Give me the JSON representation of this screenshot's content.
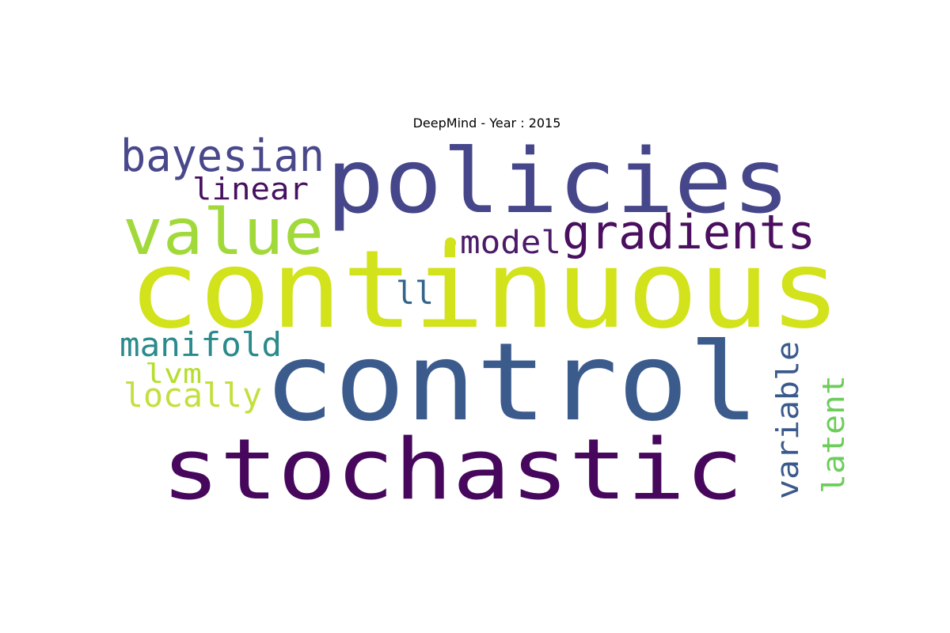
{
  "title": "DeepMind - Year : 2015",
  "words": [
    {
      "id": "continuous",
      "text": "continuous",
      "color": "#d2e21b"
    },
    {
      "id": "control",
      "text": "control",
      "color": "#3b5b8c"
    },
    {
      "id": "policies",
      "text": "policies",
      "color": "#46468a"
    },
    {
      "id": "stochastic",
      "text": "stochastic",
      "color": "#46075c"
    },
    {
      "id": "value",
      "text": "value",
      "color": "#a2d93a"
    },
    {
      "id": "gradients",
      "text": "gradients",
      "color": "#4a0f5e"
    },
    {
      "id": "bayesian",
      "text": "bayesian",
      "color": "#49488b"
    },
    {
      "id": "linear",
      "text": "linear",
      "color": "#46105f"
    },
    {
      "id": "model",
      "text": "model",
      "color": "#4d1a68"
    },
    {
      "id": "manifold",
      "text": "manifold",
      "color": "#2a8a8c"
    },
    {
      "id": "locally",
      "text": "locally",
      "color": "#c1e03e"
    },
    {
      "id": "lvm",
      "text": "lvm",
      "color": "#b5de2b"
    },
    {
      "id": "ll",
      "text": "ll",
      "color": "#33658c"
    },
    {
      "id": "variable",
      "text": "variable",
      "color": "#3a598b"
    },
    {
      "id": "latent",
      "text": "latent",
      "color": "#6ccd5a"
    }
  ]
}
